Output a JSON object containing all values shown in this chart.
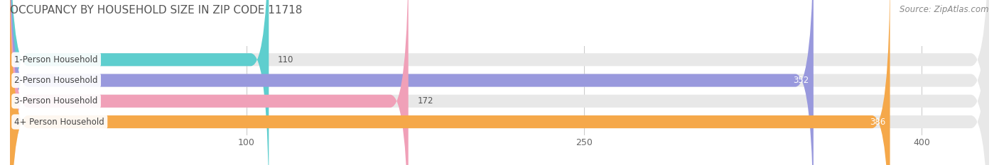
{
  "title": "OCCUPANCY BY HOUSEHOLD SIZE IN ZIP CODE 11718",
  "source": "Source: ZipAtlas.com",
  "categories": [
    "1-Person Household",
    "2-Person Household",
    "3-Person Household",
    "4+ Person Household"
  ],
  "values": [
    110,
    352,
    172,
    386
  ],
  "colors": [
    "#5ecece",
    "#9999dd",
    "#f0a0b8",
    "#f5a84a"
  ],
  "bar_background": "#e8e8e8",
  "xlim_data": [
    0,
    430
  ],
  "xticks": [
    100,
    250,
    400
  ],
  "title_fontsize": 11,
  "source_fontsize": 8.5,
  "label_fontsize": 8.5,
  "value_fontsize": 8.5,
  "tick_fontsize": 9,
  "bar_height": 0.62,
  "figsize": [
    14.06,
    2.33
  ],
  "dpi": 100
}
